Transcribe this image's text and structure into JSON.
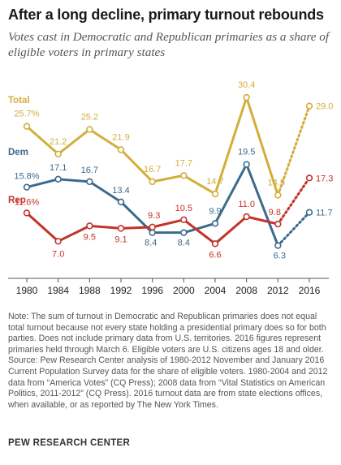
{
  "header": {
    "title": "After a long decline, primary turnout rebounds",
    "subtitle": "Votes cast in Democratic and Republican primaries as a share of eligible voters in primary states"
  },
  "notes": {
    "note": "Note: The sum of turnout in Democratic and Republican primaries does not equal total turnout because not every state holding a presidential primary does so for both parties. Does not include primary data from U.S. territories. 2016 figures represent primaries held through March 6. Eligible voters are U.S. citizens ages 18 and older.",
    "source": "Source: Pew Research Center analysis of 1980-2012 November and January 2016 Current Population Survey data for the share of eligible voters. 1980-2004 and 2012 data from “America Votes” (CQ Press); 2008 data from “Vital Statistics on American Politics, 2011-2012” (CQ Press). 2016 turnout data are from state elections offices, when available, or as reported by The New York Times."
  },
  "footer": {
    "org": "PEW RESEARCH CENTER"
  },
  "chart_data": {
    "type": "line",
    "x": [
      1980,
      1984,
      1988,
      1992,
      1996,
      2000,
      2004,
      2008,
      2012,
      2016
    ],
    "ylim": [
      4,
      32
    ],
    "grid": false,
    "series": [
      {
        "name": "Total",
        "color": "#d3ae3b",
        "values": [
          25.7,
          21.2,
          25.2,
          21.9,
          16.7,
          17.7,
          14.7,
          30.4,
          14.5,
          29.0
        ],
        "labels": [
          "25.7%",
          "21.2",
          "25.2",
          "21.9",
          "16.7",
          "17.7",
          "14.7",
          "30.4",
          "14.5",
          "29.0"
        ],
        "last_segment_dotted": true
      },
      {
        "name": "Dem",
        "color": "#3b6a8c",
        "values": [
          15.8,
          17.1,
          16.7,
          13.4,
          8.4,
          8.4,
          9.9,
          19.5,
          6.3,
          11.7
        ],
        "labels": [
          "15.8%",
          "17.1",
          "16.7",
          "13.4",
          "8.4",
          "8.4",
          "9.9",
          "19.5",
          "6.3",
          "11.7"
        ],
        "last_segment_dotted": true
      },
      {
        "name": "Rep",
        "color": "#c4332a",
        "values": [
          11.6,
          7.0,
          9.5,
          9.1,
          9.3,
          10.5,
          6.6,
          11.0,
          9.8,
          17.3
        ],
        "labels": [
          "11.6%",
          "7.0",
          "9.5",
          "9.1",
          "9.3",
          "10.5",
          "6.6",
          "11.0",
          "9.8",
          "17.3"
        ],
        "last_segment_dotted": true
      }
    ]
  }
}
